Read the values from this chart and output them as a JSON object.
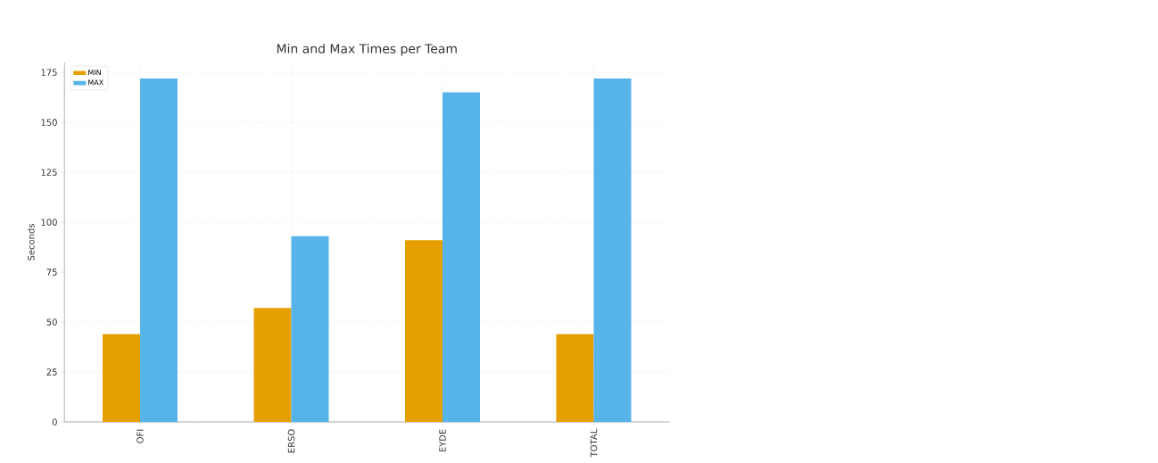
{
  "chart_data": {
    "type": "bar",
    "title": "Min and Max Times per Team",
    "ylabel": "Seconds",
    "categories": [
      "OFI",
      "ERSO",
      "EYDE",
      "TOTAL"
    ],
    "series": [
      {
        "name": "MIN",
        "color": "#e69f00",
        "values": [
          44,
          57,
          91,
          44
        ]
      },
      {
        "name": "MAX",
        "color": "#56b4e9",
        "values": [
          172,
          93,
          165,
          172
        ]
      }
    ],
    "ylim": [
      0,
      180
    ],
    "yticks": [
      0,
      25,
      50,
      75,
      100,
      125,
      150,
      175
    ],
    "grid": true,
    "legend": "top left"
  }
}
